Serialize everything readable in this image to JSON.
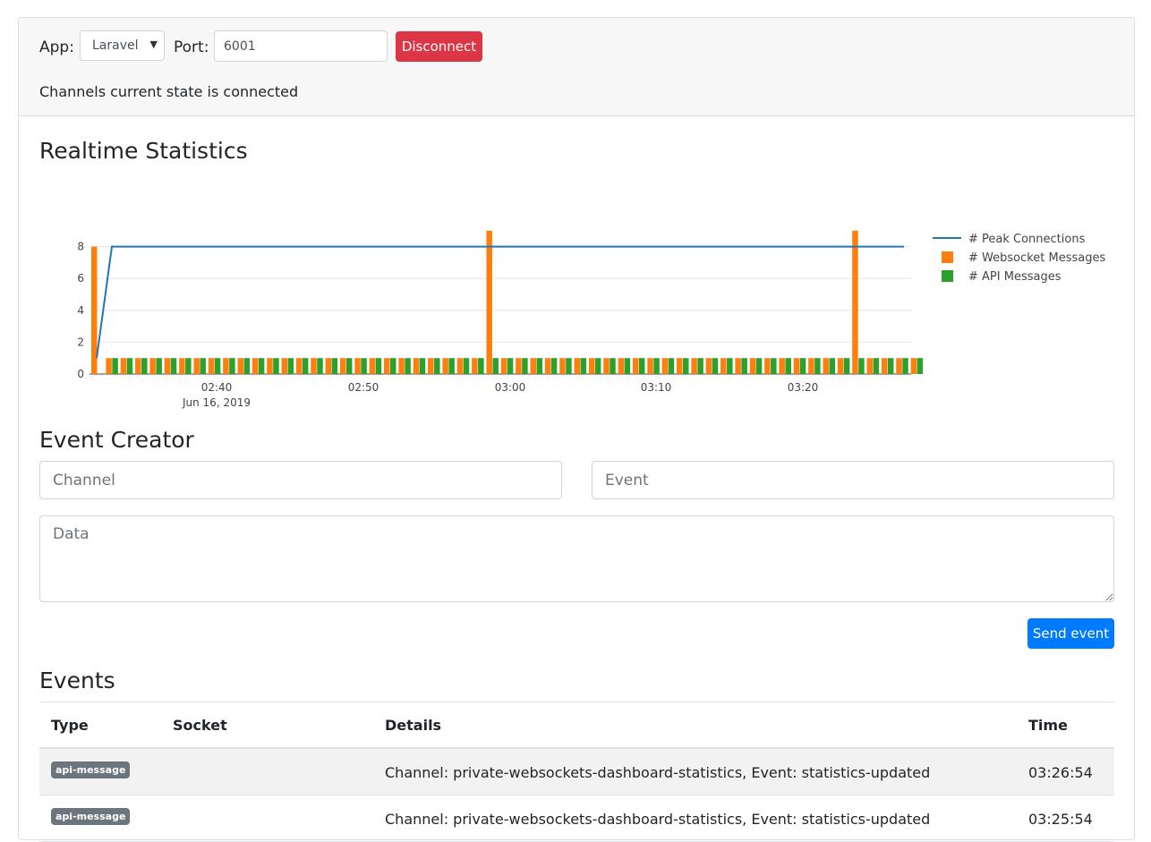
{
  "header": {
    "app_label": "App:",
    "app_value": "Laravel",
    "port_label": "Port:",
    "port_value": "6001",
    "disconnect_label": "Disconnect",
    "state_text": "Channels current state is connected"
  },
  "stats": {
    "title": "Realtime Statistics"
  },
  "chart_data": {
    "type": "bar",
    "x_tick_labels": [
      "02:40",
      "02:50",
      "03:00",
      "03:10",
      "03:20"
    ],
    "x_sub_label": "Jun 16, 2019",
    "y_ticks": [
      0,
      2,
      4,
      6,
      8
    ],
    "ylim": [
      0,
      9
    ],
    "legend_position": "right",
    "grid": true,
    "series": [
      {
        "name": "# Peak Connections",
        "type": "line",
        "color": "#1f77b4",
        "values": [
          1,
          8,
          8,
          8,
          8,
          8,
          8,
          8,
          8,
          8,
          8,
          8,
          8,
          8,
          8,
          8,
          8,
          8,
          8,
          8,
          8,
          8,
          8,
          8,
          8,
          8,
          8,
          8,
          8,
          8,
          8,
          8,
          8,
          8,
          8,
          8,
          8,
          8,
          8,
          8,
          8,
          8,
          8,
          8,
          8,
          8,
          8,
          8,
          8,
          8,
          8,
          8,
          8,
          8,
          8,
          8,
          8
        ]
      },
      {
        "name": "# Websocket Messages",
        "type": "bar",
        "color": "#ff7f0e",
        "values": [
          8,
          1,
          1,
          1,
          1,
          1,
          1,
          1,
          1,
          1,
          1,
          1,
          1,
          1,
          1,
          1,
          1,
          1,
          1,
          1,
          1,
          1,
          1,
          1,
          1,
          1,
          1,
          9,
          1,
          1,
          1,
          1,
          1,
          1,
          1,
          1,
          1,
          1,
          1,
          1,
          1,
          1,
          1,
          1,
          1,
          1,
          1,
          1,
          1,
          1,
          1,
          1,
          9,
          1,
          1,
          1,
          1
        ]
      },
      {
        "name": "# API Messages",
        "type": "bar",
        "color": "#2ca02c",
        "values": [
          0,
          1,
          1,
          1,
          1,
          1,
          1,
          1,
          1,
          1,
          1,
          1,
          1,
          1,
          1,
          1,
          1,
          1,
          1,
          1,
          1,
          1,
          1,
          1,
          1,
          1,
          1,
          1,
          1,
          1,
          1,
          1,
          1,
          1,
          1,
          1,
          1,
          1,
          1,
          1,
          1,
          1,
          1,
          1,
          1,
          1,
          1,
          1,
          1,
          1,
          1,
          1,
          1,
          1,
          1,
          1,
          1
        ]
      }
    ]
  },
  "creator": {
    "title": "Event Creator",
    "channel_placeholder": "Channel",
    "event_placeholder": "Event",
    "data_placeholder": "Data",
    "send_label": "Send event"
  },
  "events": {
    "title": "Events",
    "columns": [
      "Type",
      "Socket",
      "Details",
      "Time"
    ],
    "rows": [
      {
        "type": "api-message",
        "socket": "",
        "details": "Channel: private-websockets-dashboard-statistics, Event: statistics-updated",
        "time": "03:26:54"
      },
      {
        "type": "api-message",
        "socket": "",
        "details": "Channel: private-websockets-dashboard-statistics, Event: statistics-updated",
        "time": "03:25:54"
      }
    ]
  }
}
